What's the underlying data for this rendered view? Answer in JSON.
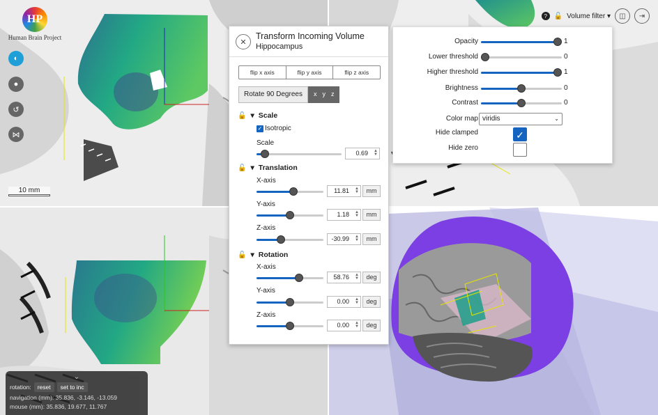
{
  "logo": {
    "initials": "HP",
    "name": "Human Brain Project"
  },
  "side_buttons": [
    {
      "name": "brain-icon",
      "glyph": "◐",
      "active": true
    },
    {
      "name": "pin-icon",
      "glyph": "●",
      "active": false
    },
    {
      "name": "history-icon",
      "glyph": "↺",
      "active": false
    },
    {
      "name": "share-icon",
      "glyph": "⋈",
      "active": false
    }
  ],
  "scale_bar": {
    "label": "10 mm"
  },
  "status": {
    "chevron": "⌄",
    "rotation_label": "rotation:",
    "reset_label": "reset",
    "set_to_inc_label": "set to inc",
    "navigation": "navigation (mm): 35.836, -3.146, -13.059",
    "mouse": "mouse (mm): 35.836, 19.677, 11.767"
  },
  "top_right": {
    "help": "?",
    "lock": "🔓",
    "volume_filter_label": "Volume filter",
    "caret": "▾",
    "layout_icon": "◫",
    "exit_icon": "⇥"
  },
  "transform_panel": {
    "close": "✕",
    "title": "Transform Incoming Volume",
    "subtitle": "Hippocampus",
    "flip": [
      "flip x axis",
      "flip y axis",
      "flip z axis"
    ],
    "rotate_label": "Rotate 90 Degrees",
    "rotate_axes": [
      "x",
      "y",
      "z"
    ],
    "lock_glyph": "🔓",
    "caret": "▾",
    "scale": {
      "title": "Scale",
      "isotropic_label": "Isotropic",
      "isotropic_checked": true,
      "field_label": "Scale",
      "value": "0.69",
      "fraction": 0.05
    },
    "translation": {
      "title": "Translation",
      "fields": [
        {
          "label": "X-axis",
          "value": "11.81",
          "unit": "mm",
          "fraction": 0.56
        },
        {
          "label": "Y-axis",
          "value": "1.18",
          "unit": "mm",
          "fraction": 0.5
        },
        {
          "label": "Z-axis",
          "value": "-30.99",
          "unit": "mm",
          "fraction": 0.34
        }
      ]
    },
    "rotation": {
      "title": "Rotation",
      "fields": [
        {
          "label": "X-axis",
          "value": "58.76",
          "unit": "deg",
          "fraction": 0.66
        },
        {
          "label": "Y-axis",
          "value": "0.00",
          "unit": "deg",
          "fraction": 0.5
        },
        {
          "label": "Z-axis",
          "value": "0.00",
          "unit": "deg",
          "fraction": 0.5
        }
      ]
    }
  },
  "volume_filter": {
    "sliders": [
      {
        "label": "Opacity",
        "value": "1",
        "fraction": 1.0
      },
      {
        "label": "Lower threshold",
        "value": "0",
        "fraction": 0.0
      },
      {
        "label": "Higher threshold",
        "value": "1",
        "fraction": 1.0
      },
      {
        "label": "Brightness",
        "value": "0",
        "fraction": 0.5
      },
      {
        "label": "Contrast",
        "value": "0",
        "fraction": 0.5
      }
    ],
    "color_map_label": "Color map",
    "color_map_value": "viridis",
    "hide_clamped_label": "Hide clamped",
    "hide_clamped_checked": true,
    "hide_zero_label": "Hide zero",
    "hide_zero_checked": false,
    "check_glyph": "✓",
    "select_arrow": "⌄"
  },
  "colors": {
    "accent": "#1565c0",
    "panel_border": "#cfcfcf",
    "viridis_dark": "#2c6a8e",
    "viridis_mid": "#22a884",
    "viridis_light": "#7ad151",
    "brain_purple": "#7b3fe4"
  }
}
